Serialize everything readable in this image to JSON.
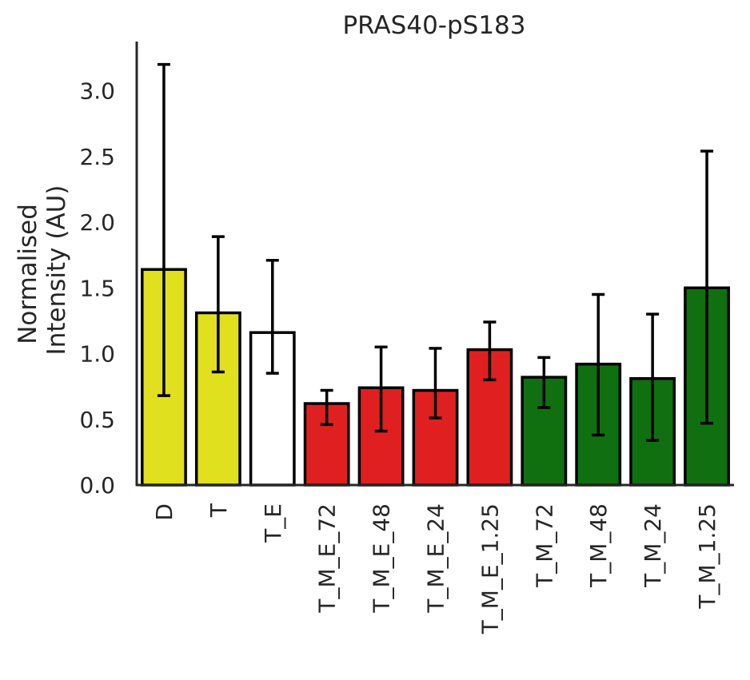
{
  "chart_data": {
    "type": "bar",
    "title": "PRAS40-pS183",
    "xlabel": "",
    "ylabel_lines": [
      "Normalised",
      "Intensity (AU)"
    ],
    "ylim": [
      0,
      3.35
    ],
    "yticks": [
      "0.0",
      "0.5",
      "1.0",
      "1.5",
      "2.0",
      "2.5",
      "3.0"
    ],
    "ytick_values": [
      0,
      0.5,
      1.0,
      1.5,
      2.0,
      2.5,
      3.0
    ],
    "grid": false,
    "categories": [
      "D",
      "T",
      "T_E",
      "T_M_E_72",
      "T_M_E_48",
      "T_M_E_24",
      "T_M_E_1.25",
      "T_M_72",
      "T_M_48",
      "T_M_24",
      "T_M_1.25"
    ],
    "values": [
      1.64,
      1.31,
      1.16,
      0.62,
      0.74,
      0.72,
      1.03,
      0.82,
      0.92,
      0.81,
      1.5
    ],
    "err_low": [
      0.68,
      0.86,
      0.85,
      0.46,
      0.41,
      0.51,
      0.8,
      0.59,
      0.38,
      0.34,
      0.47
    ],
    "err_high": [
      3.2,
      1.89,
      1.71,
      0.72,
      1.05,
      1.04,
      1.24,
      0.97,
      1.45,
      1.3,
      2.54
    ],
    "bar_colors": [
      "#e0e01f",
      "#e0e01f",
      "#ffffff",
      "#e02020",
      "#e02020",
      "#e02020",
      "#e02020",
      "#107010",
      "#107010",
      "#107010",
      "#107010"
    ]
  }
}
